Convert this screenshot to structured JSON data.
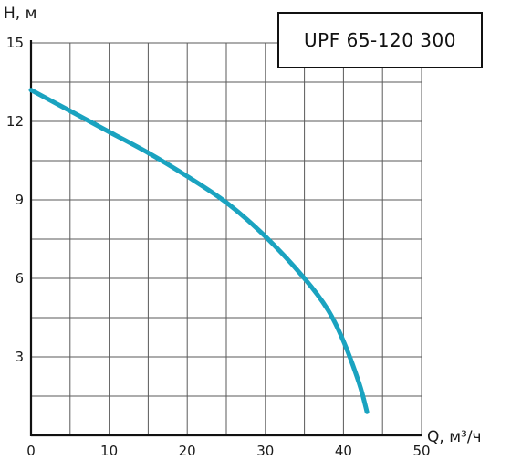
{
  "chart_data": {
    "type": "line",
    "title": "UPF 65-120 300",
    "xlabel": "Q, м³/ч",
    "ylabel": "H, м",
    "xlim": [
      0,
      50
    ],
    "ylim": [
      0,
      15
    ],
    "x_ticks": [
      "0",
      "10",
      "20",
      "30",
      "40",
      "50"
    ],
    "y_ticks": [
      "3",
      "6",
      "9",
      "12",
      "15"
    ],
    "grid": true,
    "series": [
      {
        "color": "#1aa3c0",
        "x": [
          0,
          5,
          10,
          15,
          20,
          25,
          30,
          35,
          38,
          40,
          42,
          43
        ],
        "y": [
          13.2,
          12.4,
          11.6,
          10.8,
          9.9,
          8.9,
          7.6,
          6.0,
          4.8,
          3.6,
          2.0,
          0.9
        ]
      }
    ]
  }
}
